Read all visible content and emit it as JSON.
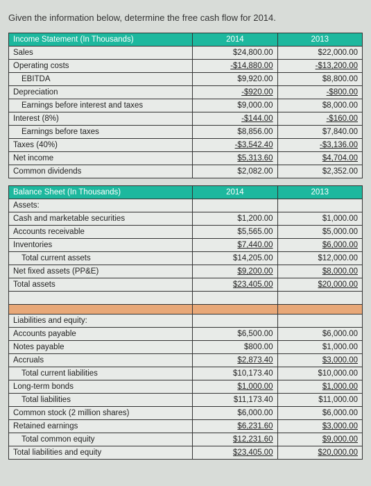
{
  "title": "Given the information below, determine the free cash flow for 2014.",
  "incomeStatement": {
    "header": {
      "label": "Income Statement (In Thousands)",
      "y2014": "2014",
      "y2013": "2013"
    },
    "rows": [
      {
        "label": "Sales",
        "y2014": "$24,800.00",
        "y2013": "$22,000.00"
      },
      {
        "label": "Operating costs",
        "y2014": "-$14,880.00",
        "y2013": "-$13,200.00",
        "underline": true
      },
      {
        "label": "EBITDA",
        "y2014": "$9,920.00",
        "y2013": "$8,800.00",
        "indent": 1
      },
      {
        "label": "Depreciation",
        "y2014": "-$920.00",
        "y2013": "-$800.00",
        "underline": true
      },
      {
        "label": "Earnings before interest and taxes",
        "y2014": "$9,000.00",
        "y2013": "$8,000.00",
        "indent": 1
      },
      {
        "label": "Interest (8%)",
        "y2014": "-$144.00",
        "y2013": "-$160.00",
        "underline": true
      },
      {
        "label": "Earnings before taxes",
        "y2014": "$8,856.00",
        "y2013": "$7,840.00",
        "indent": 1
      },
      {
        "label": "Taxes (40%)",
        "y2014": "-$3,542.40",
        "y2013": "-$3,136.00",
        "underline": true
      },
      {
        "label": "Net income",
        "y2014": "$5,313.60",
        "y2013": "$4,704.00",
        "underline": true
      },
      {
        "label": "Common dividends",
        "y2014": "$2,082.00",
        "y2013": "$2,352.00"
      }
    ]
  },
  "balanceSheet": {
    "header": {
      "label": "Balance Sheet (In Thousands)",
      "y2014": "2014",
      "y2013": "2013"
    },
    "assetsLabel": "Assets:",
    "assetsRows": [
      {
        "label": "Cash and marketable securities",
        "y2014": "$1,200.00",
        "y2013": "$1,000.00"
      },
      {
        "label": "Accounts receivable",
        "y2014": "$5,565.00",
        "y2013": "$5,000.00"
      },
      {
        "label": "Inventories",
        "y2014": "$7,440.00",
        "y2013": "$6,000.00",
        "underline": true
      },
      {
        "label": "Total current assets",
        "y2014": "$14,205.00",
        "y2013": "$12,000.00",
        "indent": 1
      },
      {
        "label": "Net fixed assets (PP&E)",
        "y2014": "$9,200.00",
        "y2013": "$8,000.00",
        "underline": true
      },
      {
        "label": "Total assets",
        "y2014": "$23,405.00",
        "y2013": "$20,000.00",
        "underline": true
      }
    ],
    "liabLabel": "Liabilities and equity:",
    "liabRows": [
      {
        "label": "Accounts payable",
        "y2014": "$6,500.00",
        "y2013": "$6,000.00"
      },
      {
        "label": "Notes payable",
        "y2014": "$800.00",
        "y2013": "$1,000.00"
      },
      {
        "label": "Accruals",
        "y2014": "$2,873.40",
        "y2013": "$3,000.00",
        "underline": true
      },
      {
        "label": "Total current liabilities",
        "y2014": "$10,173.40",
        "y2013": "$10,000.00",
        "indent": 1
      },
      {
        "label": "Long-term bonds",
        "y2014": "$1,000.00",
        "y2013": "$1,000.00",
        "underline": true
      },
      {
        "label": "Total liabilities",
        "y2014": "$11,173.40",
        "y2013": "$11,000.00",
        "indent": 1
      },
      {
        "label": "Common stock (2 million shares)",
        "y2014": "$6,000.00",
        "y2013": "$6,000.00"
      },
      {
        "label": "Retained earnings",
        "y2014": "$6,231.60",
        "y2013": "$3,000.00",
        "underline": true
      },
      {
        "label": "Total common equity",
        "y2014": "$12,231.60",
        "y2013": "$9,000.00",
        "indent": 1,
        "underline": true
      },
      {
        "label": "Total liabilities and equity",
        "y2014": "$23,405.00",
        "y2013": "$20,000.00",
        "underline": true
      }
    ]
  }
}
